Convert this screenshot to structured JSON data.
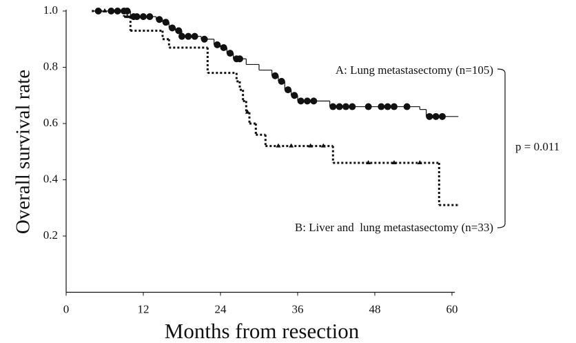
{
  "chart_data": {
    "type": "survival",
    "x_label": "Months from resection",
    "y_label": "Overall survival rate",
    "xlim": [
      0,
      61
    ],
    "ylim": [
      0,
      1.0
    ],
    "xticks": [
      0,
      12,
      24,
      36,
      48,
      60
    ],
    "yticks": [
      {
        "value": 0.2,
        "label": "0.2"
      },
      {
        "value": 0.4,
        "label": "0.4"
      },
      {
        "value": 0.6,
        "label": "0.6"
      },
      {
        "value": 0.8,
        "label": "0.8"
      },
      {
        "value": 1.0,
        "label": "1.0"
      }
    ],
    "series": [
      {
        "name": "A: Lung metastasectomy (n=105)",
        "color": "#111111",
        "style": "solid",
        "x": [
          4,
          10,
          14,
          15,
          16,
          17,
          18,
          21,
          23,
          24,
          25,
          26,
          28,
          30,
          32,
          33,
          34,
          35,
          36,
          41,
          55,
          56,
          61
        ],
        "y": [
          1.0,
          0.98,
          0.97,
          0.96,
          0.94,
          0.93,
          0.91,
          0.9,
          0.88,
          0.87,
          0.85,
          0.83,
          0.81,
          0.79,
          0.77,
          0.75,
          0.72,
          0.7,
          0.68,
          0.66,
          0.65,
          0.625,
          0.625
        ],
        "censored": [
          5,
          7,
          8,
          9,
          9.5,
          10.5,
          11,
          12,
          13,
          14.5,
          15.5,
          16.5,
          17.5,
          18,
          19,
          20,
          21.5,
          23.5,
          24.5,
          25.5,
          26.5,
          27,
          32.5,
          33.5,
          34.5,
          35.5,
          36.5,
          37.5,
          38.5,
          41.5,
          42.5,
          43.5,
          44.5,
          47,
          49,
          50,
          51,
          53,
          56.5,
          57.5,
          58.5
        ]
      },
      {
        "name": "B: Liver and  lung metastasectomy (n=33)",
        "color": "#111111",
        "style": "dotted",
        "x": [
          4,
          9,
          10,
          15,
          16,
          22,
          26.5,
          27,
          27.5,
          28,
          28.5,
          29.5,
          31,
          41.5,
          58,
          61
        ],
        "y": [
          1.0,
          0.98,
          0.93,
          0.9,
          0.87,
          0.78,
          0.75,
          0.72,
          0.68,
          0.64,
          0.6,
          0.56,
          0.52,
          0.46,
          0.31,
          0.31
        ],
        "censored": [
          5,
          6,
          7,
          8,
          9.5,
          28.2,
          33,
          35,
          38,
          40,
          47,
          51,
          55
        ]
      }
    ],
    "annotation": "p = 0.011"
  }
}
